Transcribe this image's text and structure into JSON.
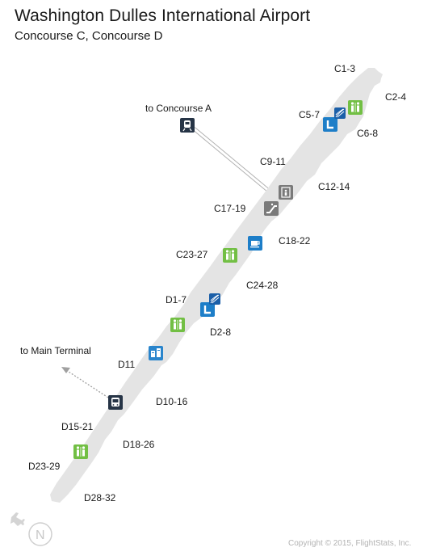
{
  "title": "Washington Dulles International Airport",
  "subtitle": "Concourse C,  Concourse D",
  "labels": {
    "c1_3": "C1-3",
    "c2_4": "C2-4",
    "c5_7": "C5-7",
    "c6_8": "C6-8",
    "to_concourse_a": "to Concourse A",
    "c9_11": "C9-11",
    "c12_14": "C12-14",
    "c17_19": "C17-19",
    "c18_22": "C18-22",
    "c23_27": "C23-27",
    "c24_28": "C24-28",
    "d1_7": "D1-7",
    "d2_8": "D2-8",
    "to_main_terminal": "to Main Terminal",
    "d11": "D11",
    "d10_16": "D10-16",
    "d15_21": "D15-21",
    "d18_26": "D18-26",
    "d23_29": "D23-29",
    "d28_32": "D28-32"
  },
  "icons": {
    "restroom": "restroom-icon",
    "lounge": "airline-lounge-icon",
    "food": "coffee-icon",
    "info": "information-icon",
    "elevator": "elevator-icon",
    "escalator": "escalator-icon",
    "train": "train-icon",
    "bus": "bus-icon",
    "north": "north-compass-icon",
    "plane": "airplane-icon"
  },
  "compass_letter": "N",
  "copyright": "Copyright © 2015, FlightStats, Inc.",
  "colors": {
    "concourse": "#e4e4e4",
    "restroom": "#72bf44",
    "lounge": "#1d7ec8",
    "dark": "#263446",
    "gray_icon": "#7a7a7a"
  }
}
